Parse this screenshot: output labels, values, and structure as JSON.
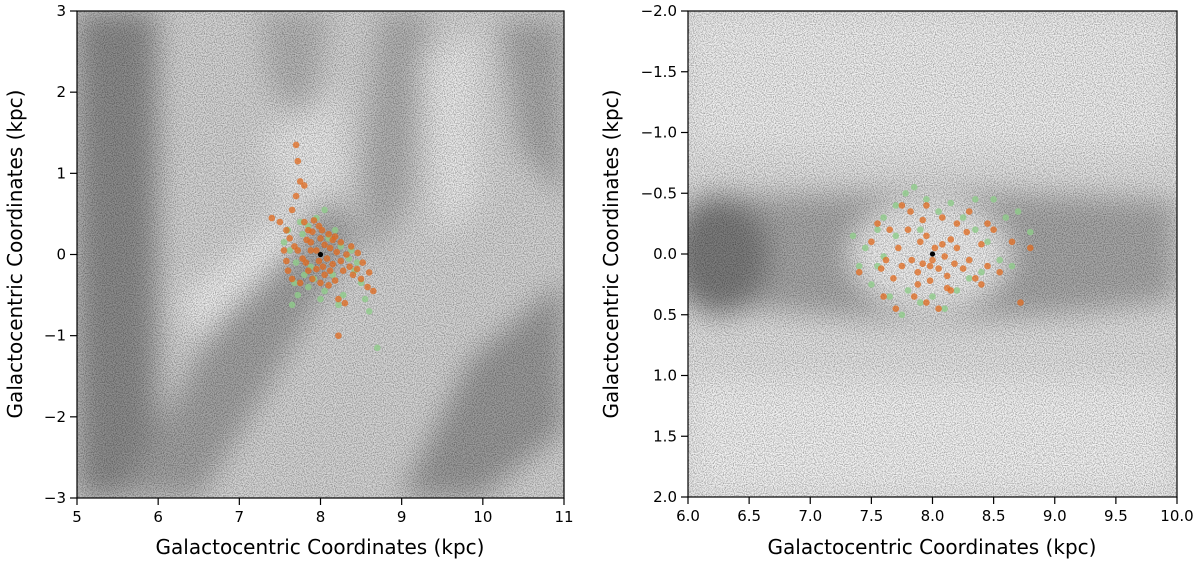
{
  "chart_data": [
    {
      "type": "scatter",
      "xlabel": "Galactocentric Coordinates (kpc)",
      "ylabel": "Galactocentric Coordinates (kpc)",
      "xlim": [
        5,
        11
      ],
      "ylim": [
        -3,
        3
      ],
      "y_inverted": false,
      "x_ticks": [
        "5",
        "6",
        "7",
        "8",
        "9",
        "10",
        "11"
      ],
      "y_ticks": [
        "−3",
        "−2",
        "−1",
        "0",
        "1",
        "2",
        "3"
      ],
      "grid": false,
      "background": "greyscale dust map",
      "center_marker": {
        "x": 8.0,
        "y": 0.0,
        "color": "#000000"
      },
      "series": [
        {
          "color": "#8fcc8a",
          "points": [
            [
              7.55,
              0.15
            ],
            [
              7.62,
              0.05
            ],
            [
              7.7,
              -0.1
            ],
            [
              7.78,
              0.25
            ],
            [
              7.85,
              0.35
            ],
            [
              7.92,
              -0.3
            ],
            [
              8.05,
              -0.45
            ],
            [
              8.15,
              -0.25
            ],
            [
              8.25,
              0.1
            ],
            [
              8.35,
              -0.05
            ],
            [
              8.42,
              -0.2
            ],
            [
              8.1,
              0.2
            ],
            [
              7.95,
              0.45
            ],
            [
              7.8,
              -0.25
            ],
            [
              8.5,
              -0.35
            ],
            [
              8.55,
              -0.55
            ],
            [
              8.6,
              -0.7
            ],
            [
              8.7,
              -1.15
            ],
            [
              7.68,
              -0.35
            ],
            [
              7.88,
              -0.15
            ],
            [
              8.28,
              -0.5
            ],
            [
              8.0,
              -0.55
            ],
            [
              7.75,
              0.4
            ],
            [
              8.18,
              0.3
            ],
            [
              7.72,
              -0.5
            ],
            [
              7.65,
              -0.62
            ],
            [
              8.38,
              0.05
            ],
            [
              8.45,
              -0.1
            ],
            [
              7.6,
              0.3
            ],
            [
              8.05,
              0.55
            ],
            [
              7.85,
              -0.4
            ],
            [
              8.22,
              -0.62
            ]
          ]
        },
        {
          "color": "#e06a1e",
          "points": [
            [
              7.7,
              1.35
            ],
            [
              7.72,
              1.15
            ],
            [
              7.75,
              0.9
            ],
            [
              7.8,
              0.85
            ],
            [
              7.7,
              0.72
            ],
            [
              7.65,
              0.55
            ],
            [
              7.4,
              0.45
            ],
            [
              7.5,
              0.4
            ],
            [
              7.58,
              0.3
            ],
            [
              7.62,
              0.2
            ],
            [
              7.68,
              0.1
            ],
            [
              7.72,
              0.05
            ],
            [
              7.78,
              -0.05
            ],
            [
              7.82,
              -0.1
            ],
            [
              7.88,
              0.15
            ],
            [
              7.9,
              0.28
            ],
            [
              7.95,
              0.05
            ],
            [
              8.0,
              0.2
            ],
            [
              8.05,
              0.12
            ],
            [
              8.08,
              -0.05
            ],
            [
              8.12,
              0.08
            ],
            [
              8.15,
              -0.12
            ],
            [
              8.2,
              0.03
            ],
            [
              8.25,
              -0.08
            ],
            [
              8.28,
              -0.2
            ],
            [
              8.32,
              0.0
            ],
            [
              8.36,
              -0.15
            ],
            [
              8.4,
              -0.25
            ],
            [
              8.45,
              -0.18
            ],
            [
              8.5,
              -0.3
            ],
            [
              8.58,
              -0.4
            ],
            [
              8.65,
              -0.45
            ],
            [
              7.85,
              -0.2
            ],
            [
              7.9,
              -0.3
            ],
            [
              8.0,
              -0.35
            ],
            [
              8.05,
              -0.25
            ],
            [
              8.1,
              -0.38
            ],
            [
              8.18,
              -0.32
            ],
            [
              8.22,
              -0.55
            ],
            [
              8.3,
              -0.6
            ],
            [
              8.22,
              -1.0
            ],
            [
              7.6,
              -0.2
            ],
            [
              7.65,
              -0.3
            ],
            [
              7.75,
              -0.35
            ],
            [
              7.8,
              0.4
            ],
            [
              7.85,
              0.3
            ],
            [
              7.92,
              0.42
            ],
            [
              7.98,
              0.35
            ],
            [
              8.02,
              0.3
            ],
            [
              8.1,
              0.25
            ],
            [
              8.15,
              0.18
            ],
            [
              7.55,
              0.05
            ],
            [
              7.58,
              -0.08
            ],
            [
              7.98,
              -0.08
            ],
            [
              8.03,
              -0.15
            ],
            [
              8.12,
              -0.2
            ],
            [
              7.95,
              -0.18
            ],
            [
              7.88,
              0.05
            ],
            [
              7.83,
              0.18
            ],
            [
              8.18,
              0.22
            ],
            [
              8.25,
              0.15
            ],
            [
              8.38,
              0.1
            ],
            [
              8.46,
              0.02
            ],
            [
              8.52,
              -0.1
            ],
            [
              8.6,
              -0.22
            ]
          ]
        }
      ]
    },
    {
      "type": "scatter",
      "xlabel": "Galactocentric Coordinates (kpc)",
      "ylabel": "Galactocentric Coordinates (kpc)",
      "xlim": [
        6.0,
        10.0
      ],
      "ylim": [
        -2.0,
        2.0
      ],
      "y_inverted": true,
      "x_ticks": [
        "6.0",
        "6.5",
        "7.0",
        "7.5",
        "8.0",
        "8.5",
        "9.0",
        "9.5",
        "10.0"
      ],
      "y_ticks": [
        "−2.0",
        "−1.5",
        "−1.0",
        "−0.5",
        "0.0",
        "0.5",
        "1.0",
        "1.5",
        "2.0"
      ],
      "grid": false,
      "background": "greyscale dust map",
      "center_marker": {
        "x": 8.0,
        "y": 0.0,
        "color": "#000000"
      },
      "series": [
        {
          "color": "#8fcc8a",
          "points": [
            [
              7.35,
              -0.15
            ],
            [
              7.45,
              -0.05
            ],
            [
              7.55,
              0.1
            ],
            [
              7.6,
              -0.3
            ],
            [
              7.7,
              -0.4
            ],
            [
              7.78,
              -0.5
            ],
            [
              7.85,
              -0.55
            ],
            [
              7.95,
              -0.45
            ],
            [
              8.05,
              -0.35
            ],
            [
              8.15,
              -0.42
            ],
            [
              8.25,
              -0.3
            ],
            [
              8.35,
              -0.2
            ],
            [
              8.45,
              -0.1
            ],
            [
              8.5,
              -0.45
            ],
            [
              8.6,
              -0.3
            ],
            [
              8.7,
              -0.35
            ],
            [
              7.8,
              0.3
            ],
            [
              7.9,
              0.4
            ],
            [
              8.0,
              0.35
            ],
            [
              8.1,
              0.45
            ],
            [
              8.2,
              0.3
            ],
            [
              8.3,
              0.2
            ],
            [
              8.4,
              0.15
            ],
            [
              7.5,
              0.25
            ],
            [
              7.65,
              0.35
            ],
            [
              7.75,
              0.5
            ],
            [
              7.6,
              0.02
            ],
            [
              7.7,
              -0.15
            ],
            [
              8.55,
              0.05
            ],
            [
              8.65,
              0.1
            ],
            [
              7.4,
              0.1
            ],
            [
              8.8,
              -0.18
            ],
            [
              7.9,
              -0.2
            ],
            [
              8.35,
              -0.45
            ],
            [
              7.55,
              -0.2
            ]
          ]
        },
        {
          "color": "#e06a1e",
          "points": [
            [
              7.4,
              0.15
            ],
            [
              7.5,
              -0.1
            ],
            [
              7.55,
              -0.25
            ],
            [
              7.62,
              0.05
            ],
            [
              7.68,
              0.2
            ],
            [
              7.72,
              -0.05
            ],
            [
              7.75,
              0.1
            ],
            [
              7.8,
              -0.2
            ],
            [
              7.83,
              0.05
            ],
            [
              7.88,
              0.15
            ],
            [
              7.9,
              -0.1
            ],
            [
              7.92,
              0.08
            ],
            [
              7.95,
              -0.15
            ],
            [
              7.98,
              0.1
            ],
            [
              8.0,
              0.05
            ],
            [
              8.02,
              -0.05
            ],
            [
              8.05,
              0.12
            ],
            [
              8.08,
              -0.08
            ],
            [
              8.1,
              0.02
            ],
            [
              8.12,
              0.18
            ],
            [
              8.15,
              -0.12
            ],
            [
              8.18,
              0.08
            ],
            [
              8.2,
              -0.05
            ],
            [
              8.25,
              0.12
            ],
            [
              8.28,
              -0.18
            ],
            [
              8.3,
              0.05
            ],
            [
              8.35,
              0.2
            ],
            [
              8.4,
              -0.08
            ],
            [
              8.45,
              0.1
            ],
            [
              8.5,
              -0.2
            ],
            [
              8.55,
              0.15
            ],
            [
              8.65,
              -0.1
            ],
            [
              8.72,
              0.4
            ],
            [
              8.8,
              -0.05
            ],
            [
              7.85,
              0.35
            ],
            [
              7.95,
              0.4
            ],
            [
              8.05,
              0.45
            ],
            [
              8.15,
              0.3
            ],
            [
              7.7,
              0.45
            ],
            [
              7.6,
              0.35
            ],
            [
              7.82,
              -0.35
            ],
            [
              7.95,
              -0.4
            ],
            [
              8.08,
              -0.3
            ],
            [
              8.2,
              -0.25
            ],
            [
              8.3,
              -0.35
            ],
            [
              7.75,
              -0.4
            ],
            [
              7.88,
              0.25
            ],
            [
              7.98,
              0.22
            ],
            [
              8.12,
              0.28
            ],
            [
              7.65,
              -0.2
            ],
            [
              7.92,
              -0.28
            ],
            [
              8.4,
              0.25
            ],
            [
              8.45,
              -0.25
            ],
            [
              7.58,
              0.12
            ]
          ]
        }
      ]
    }
  ]
}
